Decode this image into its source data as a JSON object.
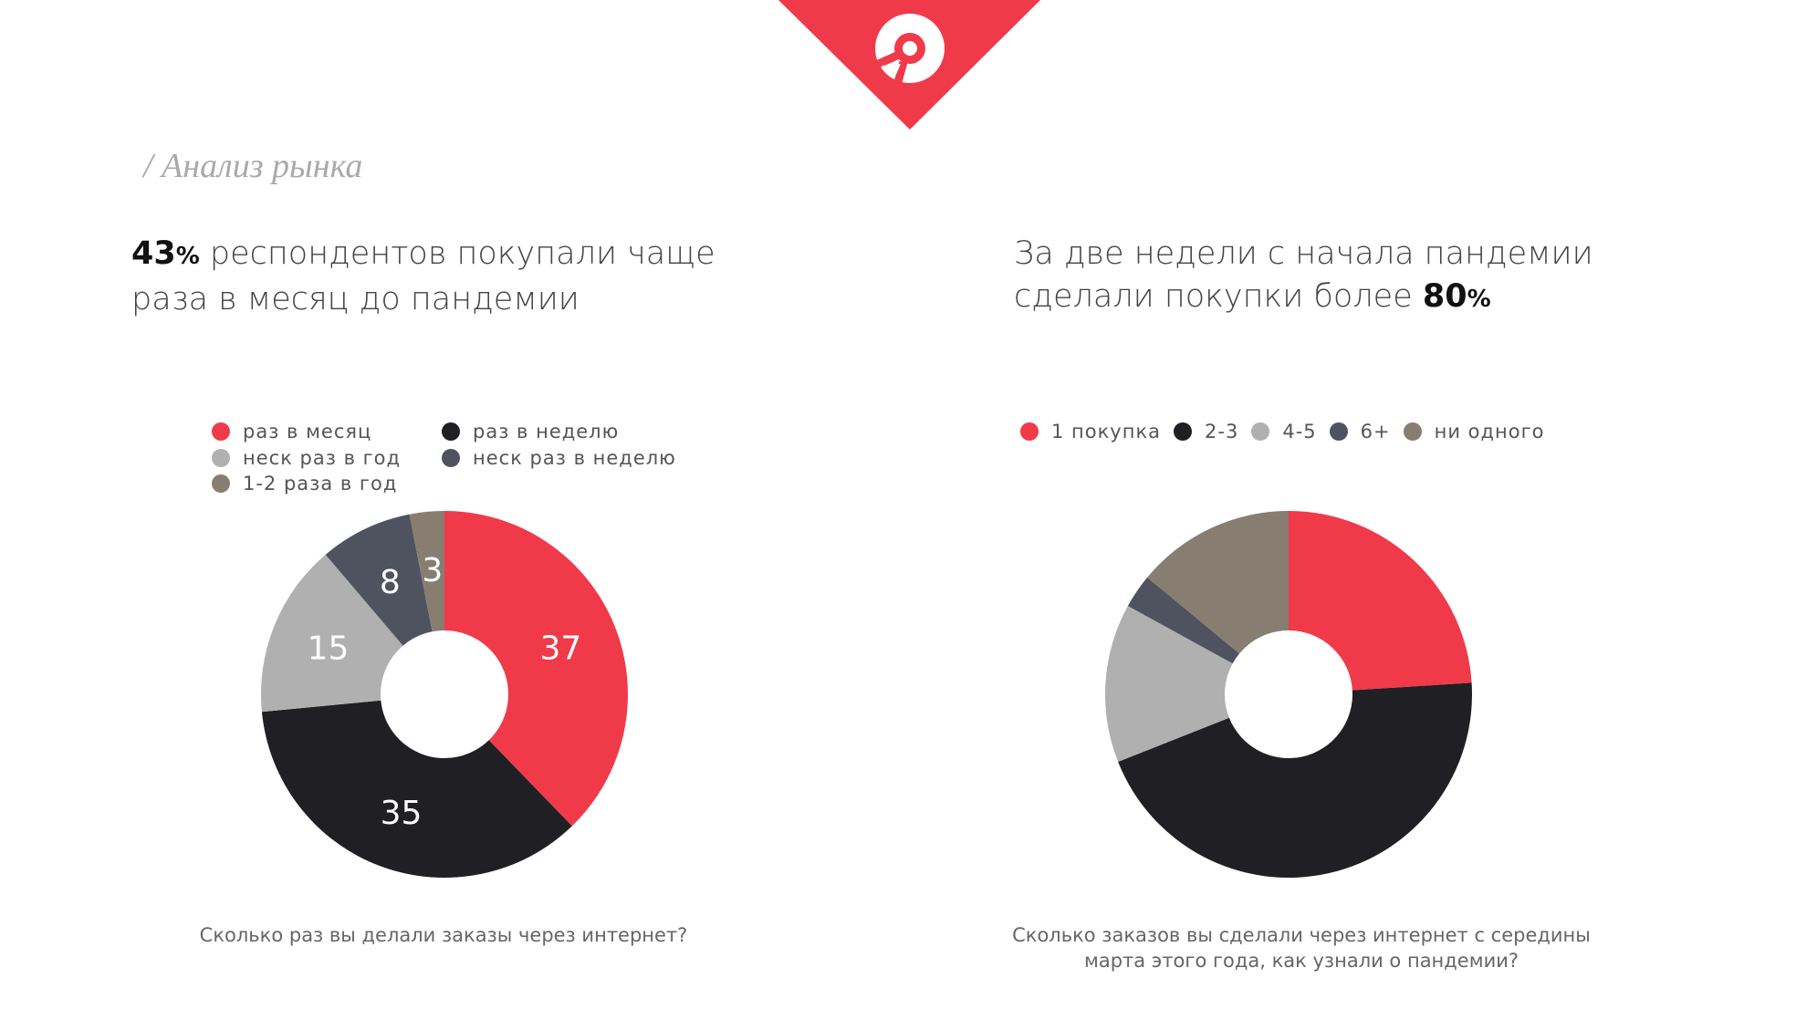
{
  "section_title": "/ Анализ рынка",
  "left": {
    "headline_pct": "43",
    "headline_pct_sign": "%",
    "headline_line1": " респондентов покупали чаще",
    "headline_line2": "раза в месяц до пандемии",
    "caption": "Сколько раз вы делали заказы через интернет?"
  },
  "right": {
    "headline_line1": "За две недели с начала пандемии",
    "headline_line2": "сделали покупки более ",
    "headline_pct": "80",
    "headline_pct_sign": "%",
    "caption_line1": "Сколько заказов вы сделали через интернет с середины",
    "caption_line2": "марта этого года, как узнали о пандемии?"
  },
  "colors": {
    "brand": "#f03a4a",
    "red": "#f03a4a",
    "black": "#201f24",
    "gray": "#b0b0b0",
    "slate": "#4f535f",
    "tan": "#877e71"
  },
  "chart_data": [
    {
      "type": "pie",
      "donut": true,
      "title": "Сколько раз вы делали заказы через интернет?",
      "categories": [
        "раз в месяц",
        "раз в неделю",
        "неск раз в год",
        "неск раз в неделю",
        "1-2 раза в год"
      ],
      "values": [
        37,
        35,
        15,
        8,
        3
      ],
      "colors": [
        "#f03a4a",
        "#201f24",
        "#b0b0b0",
        "#4f535f",
        "#877e71"
      ],
      "data_labels": [
        "37",
        "35",
        "15",
        "8",
        "3"
      ],
      "legend_placement": "top"
    },
    {
      "type": "pie",
      "donut": true,
      "title": "Сколько заказов вы сделали через интернет с середины марта этого года, как узнали о пандемии?",
      "categories": [
        "1 покупка",
        "2-3",
        "4-5",
        "6+",
        "ни одного"
      ],
      "values": [
        24,
        45,
        14,
        3,
        14
      ],
      "colors": [
        "#f03a4a",
        "#201f24",
        "#b0b0b0",
        "#4f535f",
        "#877e71"
      ],
      "legend_placement": "top"
    }
  ]
}
